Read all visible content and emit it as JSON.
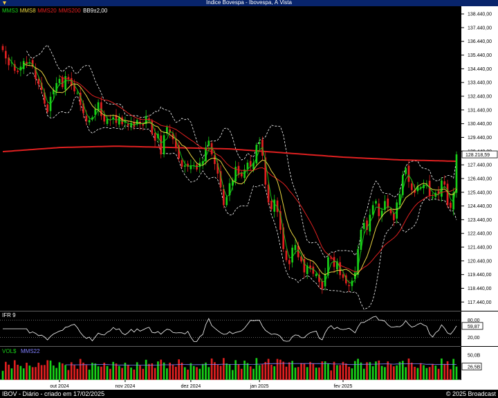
{
  "window": {
    "title": "Índice Bovespa - Ibovespa, À Vista"
  },
  "legend": {
    "items": [
      {
        "label": "MMS3",
        "color": "#18d018"
      },
      {
        "label": "MMS8",
        "color": "#e8d440"
      },
      {
        "label": "MMS20",
        "color": "#e02020"
      },
      {
        "label": "MMS200",
        "color": "#e02020"
      },
      {
        "label": "BB9±2,00",
        "color": "#ffffff"
      }
    ]
  },
  "price_axis": {
    "ticks": [
      "138.440,00",
      "137.440,00",
      "136.440,00",
      "135.440,00",
      "134.440,00",
      "133.440,00",
      "132.440,00",
      "131.440,00",
      "130.440,00",
      "129.440,00",
      "128.440,00",
      "127.440,00",
      "126.440,00",
      "125.440,00",
      "124.440,00",
      "123.440,00",
      "122.440,00",
      "121.440,00",
      "120.440,00",
      "119.440,00",
      "118.440,00",
      "117.440,00"
    ],
    "last_price_label": "128.218,59"
  },
  "ifr_panel": {
    "label": "IFR 9",
    "ticks": [
      "80,00",
      "20,00"
    ],
    "current_label": "59,87"
  },
  "vol_panel": {
    "label": "VOL$",
    "ma_label": "MMS22",
    "ticks": [
      "50,0B"
    ],
    "current_label": "26,5B"
  },
  "time_axis": {
    "labels": [
      "out 2024",
      "nov 2024",
      "dez 2024",
      "jan 2025",
      "fev 2025"
    ]
  },
  "footer": {
    "left": "IBOV - Diário - criado em 17/02/2025",
    "right": "© 2025 Broadcast"
  },
  "colors": {
    "up": "#18d018",
    "down": "#e02020",
    "ma3": "#18d018",
    "ma8": "#e8d440",
    "ma20": "#e02020",
    "ma200": "#e02020",
    "bb": "#ffffff",
    "axis_bg": "#ffffff",
    "title_bg": "#08246b"
  },
  "chart_data": {
    "type": "candlestick",
    "title": "Índice Bovespa - Ibovespa, À Vista",
    "ylim": [
      116800,
      139000
    ],
    "x_months": [
      "out 2024",
      "nov 2024",
      "dez 2024",
      "jan 2025",
      "fev 2025"
    ],
    "closes": [
      135800,
      135200,
      134700,
      134900,
      134300,
      134200,
      134600,
      135000,
      134800,
      134900,
      134600,
      133700,
      133300,
      132900,
      131900,
      131300,
      132400,
      132900,
      133400,
      133700,
      133100,
      133900,
      133700,
      133200,
      132800,
      132700,
      131800,
      131200,
      130600,
      130700,
      130900,
      131500,
      132000,
      131000,
      130600,
      130800,
      130700,
      130900,
      130500,
      130900,
      130400,
      130600,
      130300,
      130500,
      130200,
      130700,
      130400,
      130300,
      131000,
      130700,
      129700,
      129200,
      129700,
      128200,
      129600,
      130200,
      129800,
      129300,
      128700,
      127900,
      127300,
      127400,
      127300,
      127400,
      127400,
      127100,
      127600,
      127700,
      128700,
      129200,
      128200,
      127500,
      126800,
      125800,
      124500,
      125100,
      126100,
      126300,
      127300,
      126700,
      126600,
      127100,
      127600,
      127300,
      127600,
      128900,
      129100,
      128100,
      126000,
      124700,
      124200,
      124900,
      124000,
      122700,
      121300,
      120500,
      120200,
      121400,
      121600,
      120700,
      120400,
      119600,
      120100,
      119900,
      119500,
      119500,
      118900,
      118400,
      119500,
      120700,
      120600,
      120000,
      120400,
      119400,
      119200,
      118800,
      118600,
      119000,
      119600,
      121300,
      122700,
      123200,
      122700,
      123800,
      124500,
      124800,
      123700,
      124100,
      124800,
      124300,
      123900,
      123400,
      124700,
      125300,
      126700,
      127200,
      126200,
      125600,
      125400,
      125900,
      125800,
      126000,
      126100,
      125200,
      125100,
      125400,
      125300,
      126300,
      126000,
      124500,
      124300,
      125400,
      128200
    ],
    "ma200_approx": [
      128400,
      128700,
      128800,
      128700,
      128600,
      128300,
      128000,
      127800,
      127700
    ],
    "ifr": {
      "range": [
        0,
        100
      ],
      "levels": [
        80,
        20
      ],
      "last": 59.87
    },
    "volume": {
      "unit": "B",
      "ma_period": 22,
      "last": 26.5
    }
  }
}
